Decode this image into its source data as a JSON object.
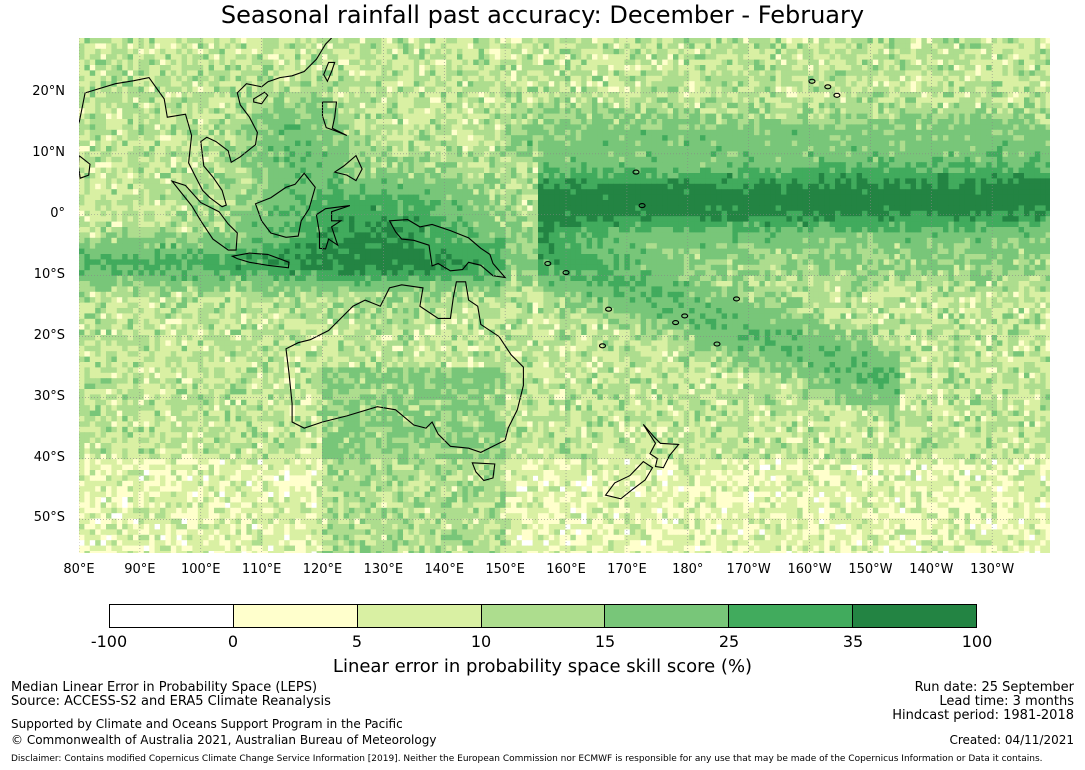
{
  "title": "Seasonal rainfall past accuracy: December - February",
  "map": {
    "lat_labels": [
      "20°N",
      "10°N",
      "0°",
      "10°S",
      "20°S",
      "30°S",
      "40°S",
      "50°S"
    ],
    "lon_labels": [
      "80°E",
      "90°E",
      "100°E",
      "110°E",
      "120°E",
      "130°E",
      "140°E",
      "150°E",
      "160°E",
      "170°E",
      "180°",
      "170°W",
      "160°W",
      "150°W",
      "140°W",
      "130°W"
    ],
    "lon_range": [
      80,
      239.5
    ],
    "lat_range": [
      -55.5,
      29
    ],
    "grid": true,
    "coastlines": true,
    "field_pattern": "high skill along equatorial Pacific band and Maritime Continent, lower skill at higher latitudes"
  },
  "colorbar": {
    "title": "Linear error in probability space skill score (%)",
    "labels": [
      "-100",
      "0",
      "5",
      "10",
      "15",
      "25",
      "35",
      "100"
    ],
    "colors": [
      "#ffffff",
      "#ffffcc",
      "#d9f0a3",
      "#addd8e",
      "#78c679",
      "#41ab5d",
      "#238443"
    ]
  },
  "footer": {
    "line1": "Median Linear Error in Probability Space (LEPS)",
    "line2": "Source: ACCESS-S2 and ERA5 Climate Reanalysis",
    "line3": "Supported by Climate and Oceans Support Program in the Pacific",
    "line4": "© Commonwealth of Australia 2021, Australian Bureau of Meteorology",
    "run_date": "Run date: 25 September",
    "lead_time": "Lead time: 3 months",
    "hindcast": "Hindcast period: 1981-2018",
    "created": "Created: 04/11/2021",
    "disclaimer": "Disclaimer: Contains modified Copernicus Climate Change Service Information [2019]. Neither the European Commission nor ECMWF is responsible for any use that may be made of the Copernicus Information or Data it contains."
  }
}
